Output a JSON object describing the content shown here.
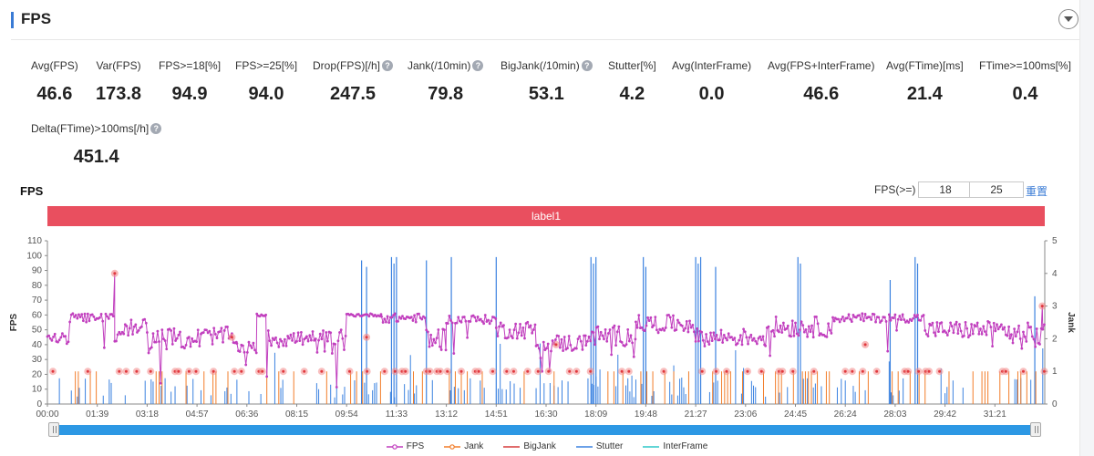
{
  "header": {
    "title": "FPS"
  },
  "metrics": [
    {
      "label": "Avg(FPS)",
      "value": "46.6",
      "help": false
    },
    {
      "label": "Var(FPS)",
      "value": "173.8",
      "help": false
    },
    {
      "label": "FPS>=18[%]",
      "value": "94.9",
      "help": false
    },
    {
      "label": "FPS>=25[%]",
      "value": "94.0",
      "help": false
    },
    {
      "label": "Drop(FPS)[/h]",
      "value": "247.5",
      "help": true
    },
    {
      "label": "Jank(/10min)",
      "value": "79.8",
      "help": true
    },
    {
      "label": "BigJank(/10min)",
      "value": "53.1",
      "help": true
    },
    {
      "label": "Stutter[%]",
      "value": "4.2",
      "help": false
    },
    {
      "label": "Avg(InterFrame)",
      "value": "0.0",
      "help": false
    },
    {
      "label": "Avg(FPS+InterFrame)",
      "value": "46.6",
      "help": false
    },
    {
      "label": "Avg(FTime)[ms]",
      "value": "21.4",
      "help": false
    },
    {
      "label": "FTime>=100ms[%]",
      "value": "0.4",
      "help": false
    },
    {
      "label": "Delta(FTime)>100ms[/h]",
      "value": "451.4",
      "help": true
    }
  ],
  "chart_section": {
    "title": "FPS",
    "threshold_label": "FPS(>=)",
    "threshold_low": "18",
    "threshold_high": "25",
    "reset_label": "重置",
    "band_label": "label1"
  },
  "chart_data": {
    "type": "line",
    "title": "",
    "ylabel": "FPS",
    "y2label": "Jank",
    "ylim": [
      0,
      110
    ],
    "y2lim": [
      0,
      5
    ],
    "yticks": [
      0,
      10,
      20,
      30,
      40,
      50,
      60,
      70,
      80,
      90,
      100,
      110
    ],
    "y2ticks": [
      0,
      1,
      2,
      3,
      4,
      5
    ],
    "xlim": [
      0,
      2000
    ],
    "x_tick_labels": [
      "00:00",
      "01:39",
      "03:18",
      "04:57",
      "06:36",
      "08:15",
      "09:54",
      "11:33",
      "13:12",
      "14:51",
      "16:30",
      "18:09",
      "19:48",
      "21:27",
      "23:06",
      "24:45",
      "26:24",
      "28:03",
      "29:42",
      "31:21"
    ],
    "legend": [
      "FPS",
      "Jank",
      "BigJank",
      "Stutter",
      "InterFrame"
    ],
    "legend_position": "bottom",
    "colors": {
      "FPS": "#c13fbe",
      "Jank": "#f27d2a",
      "BigJank": "#d63b3b",
      "Stutter": "#3b82e0",
      "InterFrame": "#2ec7c9",
      "marker": "#f28a8a"
    },
    "fps_segments": [
      {
        "x0": 0,
        "x1": 45,
        "base": 44,
        "amp": 4
      },
      {
        "x0": 45,
        "x1": 135,
        "base": 58,
        "amp": 3
      },
      {
        "x0": 135,
        "x1": 150,
        "base": 45,
        "amp": 6
      },
      {
        "x0": 150,
        "x1": 200,
        "base": 52,
        "amp": 6
      },
      {
        "x0": 200,
        "x1": 310,
        "base": 44,
        "amp": 7
      },
      {
        "x0": 310,
        "x1": 380,
        "base": 46,
        "amp": 6
      },
      {
        "x0": 380,
        "x1": 420,
        "base": 38,
        "amp": 4
      },
      {
        "x0": 420,
        "x1": 440,
        "base": 60,
        "amp": 1
      },
      {
        "x0": 440,
        "x1": 520,
        "base": 44,
        "amp": 6
      },
      {
        "x0": 520,
        "x1": 600,
        "base": 42,
        "amp": 8
      },
      {
        "x0": 600,
        "x1": 670,
        "base": 60,
        "amp": 1
      },
      {
        "x0": 670,
        "x1": 760,
        "base": 58,
        "amp": 3
      },
      {
        "x0": 760,
        "x1": 800,
        "base": 44,
        "amp": 8
      },
      {
        "x0": 800,
        "x1": 900,
        "base": 57,
        "amp": 3
      },
      {
        "x0": 900,
        "x1": 980,
        "base": 50,
        "amp": 6
      },
      {
        "x0": 980,
        "x1": 1080,
        "base": 41,
        "amp": 6
      },
      {
        "x0": 1080,
        "x1": 1180,
        "base": 46,
        "amp": 7
      },
      {
        "x0": 1180,
        "x1": 1300,
        "base": 54,
        "amp": 6
      },
      {
        "x0": 1300,
        "x1": 1440,
        "base": 45,
        "amp": 6
      },
      {
        "x0": 1440,
        "x1": 1580,
        "base": 52,
        "amp": 7
      },
      {
        "x0": 1580,
        "x1": 1760,
        "base": 58,
        "amp": 3
      },
      {
        "x0": 1760,
        "x1": 1930,
        "base": 50,
        "amp": 6
      },
      {
        "x0": 1930,
        "x1": 2000,
        "base": 46,
        "amp": 9
      }
    ],
    "stutter_spikes": [
      [
        630,
        4.4
      ],
      [
        640,
        4.2
      ],
      [
        690,
        4.5
      ],
      [
        695,
        4.3
      ],
      [
        700,
        4.5
      ],
      [
        760,
        4.4
      ],
      [
        810,
        4.5
      ],
      [
        900,
        4.5
      ],
      [
        1090,
        4.5
      ],
      [
        1095,
        4.3
      ],
      [
        1100,
        4.5
      ],
      [
        1195,
        4.5
      ],
      [
        1200,
        4.2
      ],
      [
        1300,
        4.5
      ],
      [
        1305,
        4.3
      ],
      [
        1310,
        4.5
      ],
      [
        1340,
        4.2
      ],
      [
        1505,
        4.5
      ],
      [
        1510,
        4.3
      ],
      [
        1690,
        3.8
      ],
      [
        1740,
        4.5
      ],
      [
        1745,
        4.3
      ],
      [
        1980,
        3.3
      ]
    ],
    "fps_outliers": [
      [
        135,
        88
      ],
      [
        1995,
        66
      ]
    ]
  }
}
